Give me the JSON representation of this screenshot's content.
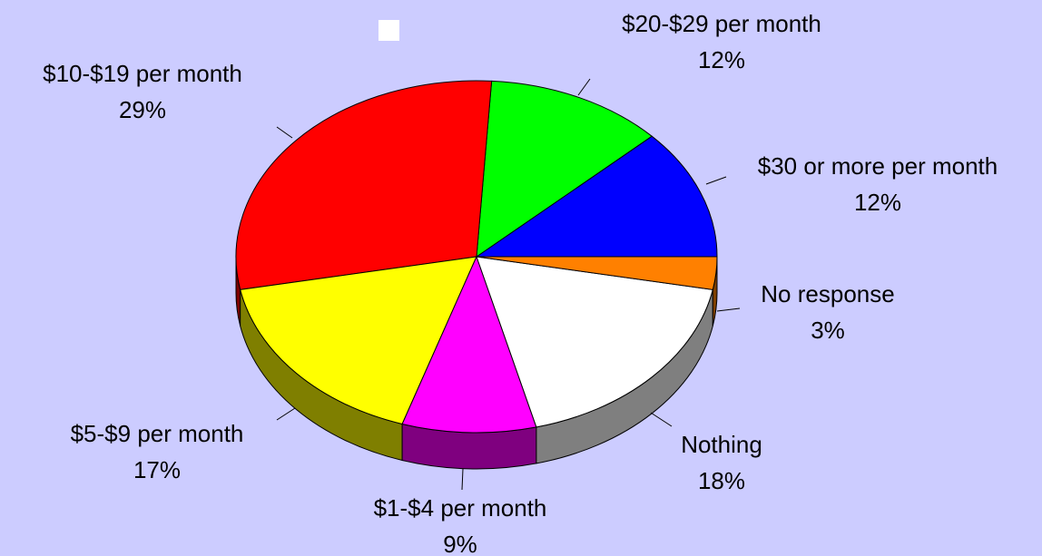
{
  "chart_data": {
    "type": "pie",
    "categories": [
      "$30 or more per month",
      "$20-$29 per month",
      "$10-$19 per month",
      "$5-$9 per month",
      "$1-$4 per month",
      "Nothing",
      "No response"
    ],
    "values": [
      12,
      12,
      29,
      17,
      9,
      18,
      3
    ],
    "value_labels": [
      "12%",
      "12%",
      "29%",
      "17%",
      "9%",
      "18%",
      "3%"
    ],
    "colors": [
      "#0000ff",
      "#00ff00",
      "#ff0000",
      "#ffff00",
      "#ff00ff",
      "#ffffff",
      "#ff8000"
    ]
  }
}
